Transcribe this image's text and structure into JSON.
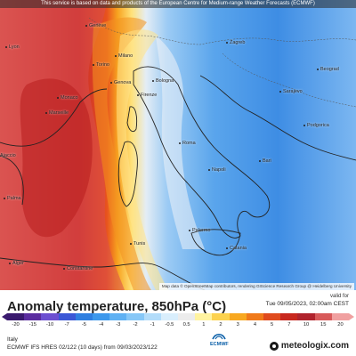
{
  "map": {
    "notice": "This service is based on data and products of the European Centre for Medium-range Weather Forecasts (ECMWF)",
    "attribution": "Map data © OpenStreetMap contributors, rendering GIScience Research Group @ Heidelberg University",
    "cities": [
      "Lyon",
      "Genève",
      "Milano",
      "Torino",
      "Genova",
      "Monaco",
      "Marseille",
      "Bologna",
      "Firenze",
      "Roma",
      "Bari",
      "Napoli",
      "Palermo",
      "Catania",
      "Ajaccio",
      "Palma",
      "Alger",
      "Constantine",
      "Tunis",
      "Zagreb",
      "Sarajevo",
      "Beograd",
      "Podgorica"
    ]
  },
  "legend": {
    "title": "Anomaly temperature, 850hPa (°C)",
    "valid_label": "valid for",
    "valid_time": "Tue 09/05/2023, 02:00am CEST",
    "ticks": [
      "-20",
      "-15",
      "-10",
      "-7",
      "-5",
      "-4",
      "-3",
      "-2",
      "-1",
      "-0.5",
      "0.5",
      "1",
      "2",
      "3",
      "4",
      "5",
      "7",
      "10",
      "15",
      "20"
    ],
    "colors": [
      "#3a1a6e",
      "#5b2da0",
      "#6c4fd1",
      "#3b57d6",
      "#2f7fe0",
      "#3d98ec",
      "#5fb1f3",
      "#86c7f7",
      "#b2dcfa",
      "#d9eefc",
      "#ececec",
      "#fff3a0",
      "#fcd24e",
      "#f8a820",
      "#f07a1a",
      "#e04b1e",
      "#c8281f",
      "#b0232d",
      "#d85a5a",
      "#f0a0a0"
    ]
  },
  "footer": {
    "region": "Italy",
    "model": "ECMWF IFS HRES 02/122 (10 days) from 09/03/2023/122",
    "ecmwf_label": "ECMWF",
    "brand": "meteologix.com"
  }
}
